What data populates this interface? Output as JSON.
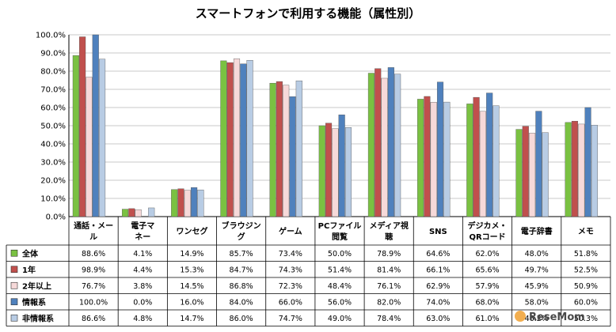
{
  "chart_data": {
    "type": "bar",
    "title": "スマートフォンで利用する機能（属性別）",
    "categories": [
      [
        "通話・メー",
        "ル"
      ],
      [
        "電子マ",
        "ネー"
      ],
      [
        "ワンセグ"
      ],
      [
        "ブラウジン",
        "グ"
      ],
      [
        "ゲーム"
      ],
      [
        "PCファイル",
        "閲覧"
      ],
      [
        "メディア視",
        "聴"
      ],
      [
        "SNS"
      ],
      [
        "デジカメ・",
        "QRコード"
      ],
      [
        "電子辞書"
      ],
      [
        "メモ"
      ]
    ],
    "ylim": [
      0,
      100
    ],
    "yticks": [
      "0.0%",
      "10.0%",
      "20.0%",
      "30.0%",
      "40.0%",
      "50.0%",
      "60.0%",
      "70.0%",
      "80.0%",
      "90.0%",
      "100.0%"
    ],
    "series": [
      {
        "name": "全体",
        "color": "#7ac142",
        "values": [
          88.6,
          4.1,
          14.9,
          85.7,
          73.4,
          50.0,
          78.9,
          64.6,
          62.0,
          48.0,
          51.8
        ],
        "labels": [
          "88.6%",
          "4.1%",
          "14.9%",
          "85.7%",
          "73.4%",
          "50.0%",
          "78.9%",
          "64.6%",
          "62.0%",
          "48.0%",
          "51.8%"
        ]
      },
      {
        "name": "1年",
        "color": "#c0504d",
        "values": [
          98.9,
          4.4,
          15.3,
          84.7,
          74.3,
          51.4,
          81.4,
          66.1,
          65.6,
          49.7,
          52.5
        ],
        "labels": [
          "98.9%",
          "4.4%",
          "15.3%",
          "84.7%",
          "74.3%",
          "51.4%",
          "81.4%",
          "66.1%",
          "65.6%",
          "49.7%",
          "52.5%"
        ]
      },
      {
        "name": "2年以上",
        "color": "#f6d9d9",
        "values": [
          76.7,
          3.8,
          14.5,
          86.8,
          72.3,
          48.4,
          76.1,
          62.9,
          57.9,
          45.9,
          50.9
        ],
        "labels": [
          "76.7%",
          "3.8%",
          "14.5%",
          "86.8%",
          "72.3%",
          "48.4%",
          "76.1%",
          "62.9%",
          "57.9%",
          "45.9%",
          "50.9%"
        ]
      },
      {
        "name": "情報系",
        "color": "#4f81bd",
        "values": [
          100.0,
          0.0,
          16.0,
          84.0,
          66.0,
          56.0,
          82.0,
          74.0,
          68.0,
          58.0,
          60.0
        ],
        "labels": [
          "100.0%",
          "0.0%",
          "16.0%",
          "84.0%",
          "66.0%",
          "56.0%",
          "82.0%",
          "74.0%",
          "68.0%",
          "58.0%",
          "60.0%"
        ]
      },
      {
        "name": "非情報系",
        "color": "#b8cce4",
        "values": [
          86.6,
          4.8,
          14.7,
          86.0,
          74.7,
          49.0,
          78.4,
          63.0,
          61.0,
          46.2,
          50.3
        ],
        "labels": [
          "86.6%",
          "4.8%",
          "14.7%",
          "86.0%",
          "74.7%",
          "49.0%",
          "78.4%",
          "63.0%",
          "61.0%",
          "46.2%",
          "50.3%"
        ]
      }
    ]
  },
  "watermark": "ReseMom"
}
